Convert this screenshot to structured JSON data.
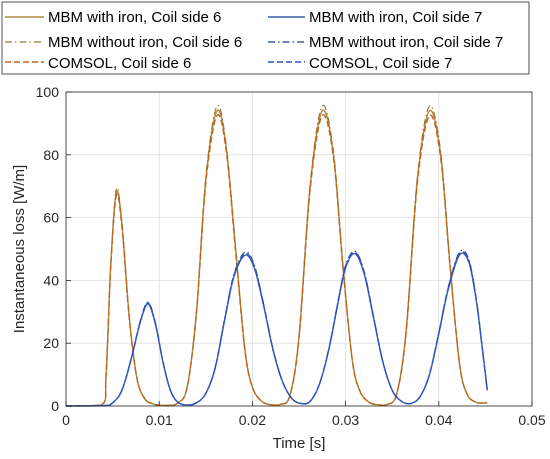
{
  "chart_data": {
    "type": "line",
    "xlabel": "Time [s]",
    "ylabel": "Instantaneous loss [W/m]",
    "xlim": [
      0,
      0.05
    ],
    "ylim": [
      0,
      100
    ],
    "xticks": [
      0,
      0.01,
      0.02,
      0.03,
      0.04,
      0.05
    ],
    "xtick_labels": [
      "0",
      "0.01",
      "0.02",
      "0.03",
      "0.04",
      "0.05"
    ],
    "yticks": [
      0,
      20,
      40,
      60,
      80,
      100
    ],
    "ytick_labels": [
      "0",
      "20",
      "40",
      "60",
      "80",
      "100"
    ],
    "grid": true,
    "legend_position": "top, outside plot, two columns",
    "series": [
      {
        "name": "MBM with iron, Coil side 6",
        "color": "#b08a3e",
        "style": "solid",
        "points": [
          [
            0,
            0
          ],
          [
            0.0038,
            0.3
          ],
          [
            0.0043,
            10
          ],
          [
            0.0048,
            45
          ],
          [
            0.0054,
            68
          ],
          [
            0.006,
            58
          ],
          [
            0.0068,
            28
          ],
          [
            0.0076,
            9
          ],
          [
            0.0084,
            2.5
          ],
          [
            0.0092,
            0.8
          ],
          [
            0.01,
            0.3
          ],
          [
            0.011,
            0.2
          ],
          [
            0.012,
            1
          ],
          [
            0.013,
            6
          ],
          [
            0.014,
            30
          ],
          [
            0.015,
            72
          ],
          [
            0.0162,
            94
          ],
          [
            0.0172,
            82
          ],
          [
            0.0182,
            50
          ],
          [
            0.0192,
            18
          ],
          [
            0.02,
            6
          ],
          [
            0.021,
            1.5
          ],
          [
            0.022,
            0.4
          ],
          [
            0.023,
            0.5
          ],
          [
            0.024,
            3
          ],
          [
            0.025,
            22
          ],
          [
            0.0262,
            70
          ],
          [
            0.0275,
            94
          ],
          [
            0.0287,
            80
          ],
          [
            0.0297,
            45
          ],
          [
            0.0307,
            15
          ],
          [
            0.0315,
            5
          ],
          [
            0.0325,
            1.2
          ],
          [
            0.0335,
            0.4
          ],
          [
            0.0345,
            0.5
          ],
          [
            0.0355,
            4
          ],
          [
            0.0365,
            24
          ],
          [
            0.0377,
            72
          ],
          [
            0.039,
            94
          ],
          [
            0.0402,
            80
          ],
          [
            0.0412,
            45
          ],
          [
            0.0422,
            14
          ],
          [
            0.043,
            4
          ],
          [
            0.044,
            1.2
          ],
          [
            0.0452,
            1
          ]
        ]
      },
      {
        "name": "MBM without iron, Coil side 6",
        "color": "#9a7436",
        "style": "dash-dot",
        "points": [
          [
            0,
            0
          ],
          [
            0.0038,
            0.3
          ],
          [
            0.0043,
            10
          ],
          [
            0.0048,
            45
          ],
          [
            0.0054,
            69
          ],
          [
            0.006,
            58.5
          ],
          [
            0.0068,
            28
          ],
          [
            0.0076,
            9
          ],
          [
            0.0084,
            2.5
          ],
          [
            0.0092,
            0.8
          ],
          [
            0.01,
            0.3
          ],
          [
            0.011,
            0.2
          ],
          [
            0.012,
            1
          ],
          [
            0.013,
            6
          ],
          [
            0.014,
            30.5
          ],
          [
            0.015,
            73
          ],
          [
            0.0162,
            95.5
          ],
          [
            0.0172,
            83
          ],
          [
            0.0182,
            50.5
          ],
          [
            0.0192,
            18
          ],
          [
            0.02,
            6
          ],
          [
            0.021,
            1.5
          ],
          [
            0.022,
            0.4
          ],
          [
            0.023,
            0.5
          ],
          [
            0.024,
            3
          ],
          [
            0.025,
            22.5
          ],
          [
            0.0262,
            71
          ],
          [
            0.0275,
            95.5
          ],
          [
            0.0287,
            81
          ],
          [
            0.0297,
            45.5
          ],
          [
            0.0307,
            15
          ],
          [
            0.0315,
            5
          ],
          [
            0.0325,
            1.2
          ],
          [
            0.0335,
            0.4
          ],
          [
            0.0345,
            0.5
          ],
          [
            0.0355,
            4
          ],
          [
            0.0365,
            24.5
          ],
          [
            0.0377,
            73
          ],
          [
            0.039,
            95.5
          ],
          [
            0.0402,
            81
          ],
          [
            0.0412,
            45.5
          ],
          [
            0.0422,
            14
          ],
          [
            0.043,
            4
          ],
          [
            0.044,
            1.2
          ],
          [
            0.0452,
            1
          ]
        ]
      },
      {
        "name": "COMSOL, Coil side 6",
        "color": "#c0661a",
        "style": "dashed",
        "points": [
          [
            0,
            0
          ],
          [
            0.0038,
            0.3
          ],
          [
            0.0043,
            10
          ],
          [
            0.0048,
            44
          ],
          [
            0.0054,
            67
          ],
          [
            0.006,
            57
          ],
          [
            0.0068,
            27.5
          ],
          [
            0.0076,
            9
          ],
          [
            0.0084,
            2.5
          ],
          [
            0.0092,
            0.8
          ],
          [
            0.01,
            0.3
          ],
          [
            0.011,
            0.2
          ],
          [
            0.012,
            1
          ],
          [
            0.013,
            6
          ],
          [
            0.014,
            29.5
          ],
          [
            0.015,
            71
          ],
          [
            0.0162,
            92.5
          ],
          [
            0.0172,
            81
          ],
          [
            0.0182,
            49
          ],
          [
            0.0192,
            17.5
          ],
          [
            0.02,
            6
          ],
          [
            0.021,
            1.5
          ],
          [
            0.022,
            0.4
          ],
          [
            0.023,
            0.5
          ],
          [
            0.024,
            3
          ],
          [
            0.025,
            21.5
          ],
          [
            0.0262,
            69
          ],
          [
            0.0275,
            92.5
          ],
          [
            0.0287,
            79
          ],
          [
            0.0297,
            44.5
          ],
          [
            0.0307,
            15
          ],
          [
            0.0315,
            5
          ],
          [
            0.0325,
            1.2
          ],
          [
            0.0335,
            0.4
          ],
          [
            0.0345,
            0.5
          ],
          [
            0.0355,
            4
          ],
          [
            0.0365,
            23.5
          ],
          [
            0.0377,
            71
          ],
          [
            0.039,
            92.5
          ],
          [
            0.0402,
            79
          ],
          [
            0.0412,
            44.5
          ],
          [
            0.0422,
            14
          ],
          [
            0.043,
            4
          ],
          [
            0.044,
            1.2
          ],
          [
            0.0452,
            1
          ]
        ]
      },
      {
        "name": "MBM with iron, Coil side 7",
        "color": "#3a5ea8",
        "style": "solid",
        "points": [
          [
            0,
            0
          ],
          [
            0.004,
            0.1
          ],
          [
            0.005,
            1
          ],
          [
            0.006,
            5
          ],
          [
            0.007,
            15
          ],
          [
            0.008,
            27
          ],
          [
            0.0088,
            32.5
          ],
          [
            0.0096,
            26
          ],
          [
            0.0104,
            14
          ],
          [
            0.0112,
            5
          ],
          [
            0.012,
            1.2
          ],
          [
            0.013,
            0.3
          ],
          [
            0.014,
            1
          ],
          [
            0.015,
            4
          ],
          [
            0.016,
            12
          ],
          [
            0.017,
            27
          ],
          [
            0.018,
            41
          ],
          [
            0.0192,
            48
          ],
          [
            0.0202,
            44
          ],
          [
            0.0212,
            32
          ],
          [
            0.0222,
            18
          ],
          [
            0.0232,
            8
          ],
          [
            0.0242,
            2.5
          ],
          [
            0.0252,
            0.8
          ],
          [
            0.0262,
            1.5
          ],
          [
            0.0272,
            7
          ],
          [
            0.0282,
            18
          ],
          [
            0.0292,
            33
          ],
          [
            0.03,
            44
          ],
          [
            0.031,
            48.5
          ],
          [
            0.032,
            42
          ],
          [
            0.033,
            28
          ],
          [
            0.034,
            14
          ],
          [
            0.035,
            5
          ],
          [
            0.036,
            1.5
          ],
          [
            0.037,
            0.8
          ],
          [
            0.038,
            3
          ],
          [
            0.039,
            10
          ],
          [
            0.04,
            23
          ],
          [
            0.041,
            37
          ],
          [
            0.0422,
            48
          ],
          [
            0.0432,
            46
          ],
          [
            0.044,
            34
          ],
          [
            0.0446,
            20
          ],
          [
            0.0452,
            5
          ]
        ]
      },
      {
        "name": "MBM without iron, Coil side 7",
        "color": "#1f3f8a",
        "style": "dash-dot",
        "points": [
          [
            0,
            0
          ],
          [
            0.004,
            0.1
          ],
          [
            0.005,
            1
          ],
          [
            0.006,
            5
          ],
          [
            0.007,
            15.2
          ],
          [
            0.008,
            27.5
          ],
          [
            0.0088,
            33
          ],
          [
            0.0096,
            26.5
          ],
          [
            0.0104,
            14.2
          ],
          [
            0.0112,
            5
          ],
          [
            0.012,
            1.2
          ],
          [
            0.013,
            0.3
          ],
          [
            0.014,
            1
          ],
          [
            0.015,
            4
          ],
          [
            0.016,
            12.2
          ],
          [
            0.017,
            27.5
          ],
          [
            0.018,
            41.8
          ],
          [
            0.0192,
            49
          ],
          [
            0.0202,
            45
          ],
          [
            0.0212,
            32.6
          ],
          [
            0.0222,
            18.3
          ],
          [
            0.0232,
            8.1
          ],
          [
            0.0242,
            2.5
          ],
          [
            0.0252,
            0.8
          ],
          [
            0.0262,
            1.5
          ],
          [
            0.0272,
            7.1
          ],
          [
            0.0282,
            18.3
          ],
          [
            0.0292,
            33.6
          ],
          [
            0.03,
            44.8
          ],
          [
            0.031,
            49.3
          ],
          [
            0.032,
            42.8
          ],
          [
            0.033,
            28.5
          ],
          [
            0.034,
            14.2
          ],
          [
            0.035,
            5
          ],
          [
            0.036,
            1.5
          ],
          [
            0.037,
            0.8
          ],
          [
            0.038,
            3
          ],
          [
            0.039,
            10.2
          ],
          [
            0.04,
            23.4
          ],
          [
            0.041,
            37.7
          ],
          [
            0.0422,
            48.9
          ],
          [
            0.0432,
            46.9
          ],
          [
            0.044,
            34.6
          ],
          [
            0.0446,
            20.3
          ],
          [
            0.0452,
            5.1
          ]
        ]
      },
      {
        "name": "COMSOL, Coil side 7",
        "color": "#2f55c8",
        "style": "dashed",
        "points": [
          [
            0,
            0
          ],
          [
            0.004,
            0.1
          ],
          [
            0.005,
            1
          ],
          [
            0.006,
            5
          ],
          [
            0.007,
            15.1
          ],
          [
            0.008,
            27.2
          ],
          [
            0.0088,
            32.8
          ],
          [
            0.0096,
            26.2
          ],
          [
            0.0104,
            14.1
          ],
          [
            0.0112,
            5
          ],
          [
            0.012,
            1.2
          ],
          [
            0.013,
            0.3
          ],
          [
            0.014,
            1
          ],
          [
            0.015,
            4
          ],
          [
            0.016,
            12.1
          ],
          [
            0.017,
            27.2
          ],
          [
            0.018,
            41.4
          ],
          [
            0.0192,
            48.5
          ],
          [
            0.0202,
            44.5
          ],
          [
            0.0212,
            32.3
          ],
          [
            0.0222,
            18.1
          ],
          [
            0.0232,
            8
          ],
          [
            0.0242,
            2.5
          ],
          [
            0.0252,
            0.8
          ],
          [
            0.0262,
            1.5
          ],
          [
            0.0272,
            7.05
          ],
          [
            0.0282,
            18.1
          ],
          [
            0.0292,
            33.3
          ],
          [
            0.03,
            44.4
          ],
          [
            0.031,
            49
          ],
          [
            0.032,
            42.4
          ],
          [
            0.033,
            28.2
          ],
          [
            0.034,
            14.1
          ],
          [
            0.035,
            5
          ],
          [
            0.036,
            1.5
          ],
          [
            0.037,
            0.8
          ],
          [
            0.038,
            3
          ],
          [
            0.039,
            10.1
          ],
          [
            0.04,
            23.2
          ],
          [
            0.041,
            37.4
          ],
          [
            0.0422,
            48.5
          ],
          [
            0.0432,
            46.4
          ],
          [
            0.044,
            34.3
          ],
          [
            0.0446,
            20.2
          ],
          [
            0.0452,
            5.05
          ]
        ]
      }
    ]
  }
}
